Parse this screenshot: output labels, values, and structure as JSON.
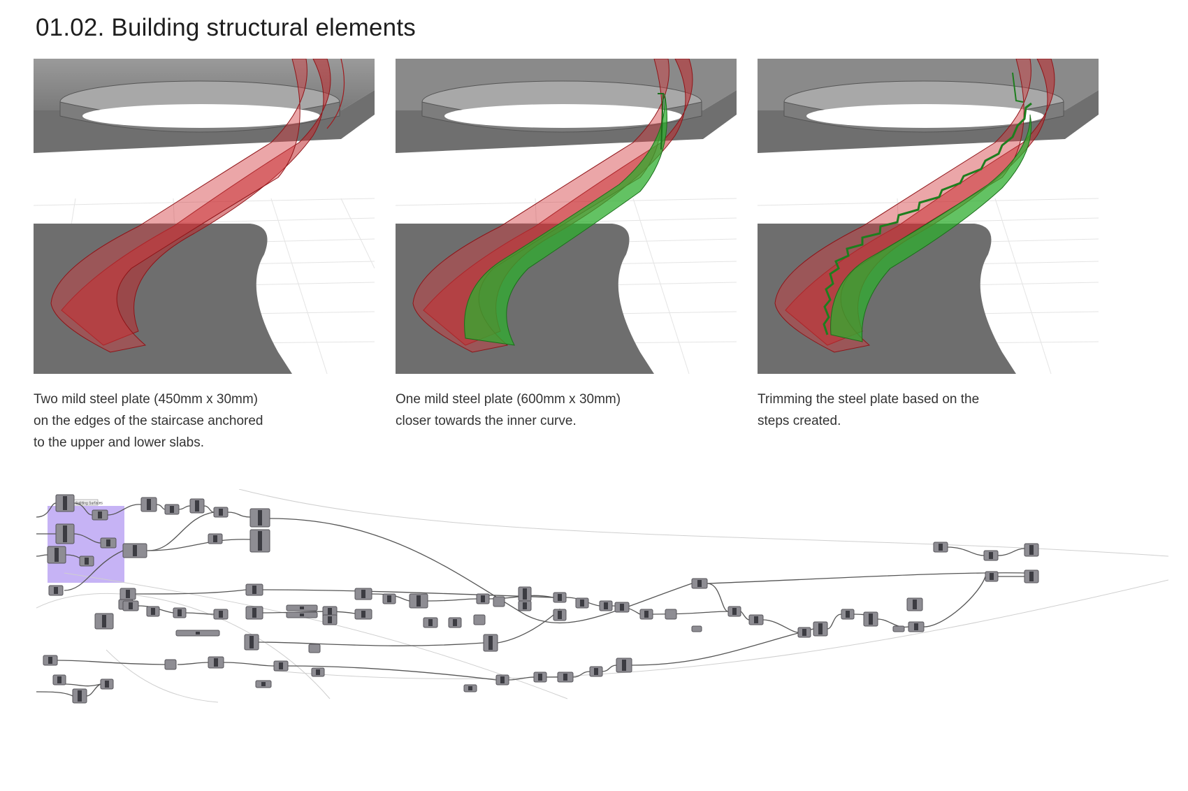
{
  "title": "01.02. Building structural elements",
  "panels": [
    {
      "caption_lines": [
        "Two mild steel plate (450mm x 30mm)",
        "on the edges of the staircase anchored",
        "to the upper and lower slabs."
      ],
      "green_plate": "none"
    },
    {
      "caption_lines": [
        "One mild steel plate (600mm x 30mm)",
        "closer towards the inner curve."
      ],
      "green_plate": "smooth"
    },
    {
      "caption_lines": [
        "Trimming the steel plate based on the",
        "steps created."
      ],
      "green_plate": "trimmed"
    }
  ],
  "colors": {
    "slab": "#8a8a8a",
    "slab_light": "#bdbdbd",
    "red_plate": "#c0292e",
    "green_plate": "#2fae2f",
    "group_highlight": "#c6b3f5"
  },
  "graph": {
    "group_label": "Splitting Surfaces"
  }
}
